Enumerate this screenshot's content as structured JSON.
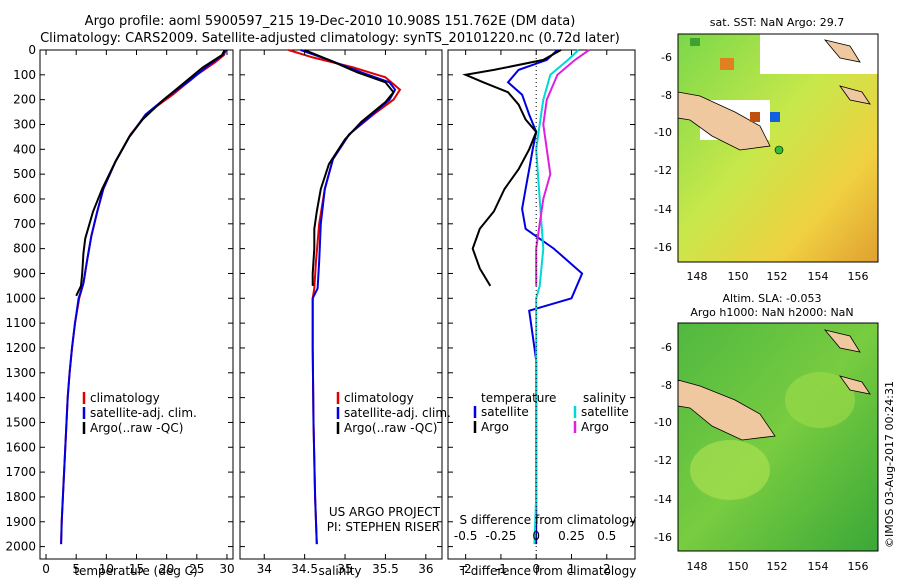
{
  "header": {
    "title_line1": "Argo profile: aoml 5900597_215 19-Dec-2010 10.908S 151.762E (DM data)",
    "title_line2": "Climatology: CARS2009. Satellite-adjusted climatology: synTS_20101220.nc (0.72d later)"
  },
  "colors": {
    "climatology": "#e00000",
    "satellite": "#0000e0",
    "argo": "#000000",
    "sal_satellite": "#00d8d8",
    "sal_argo": "#e020e0",
    "land": "#f0c8a0"
  },
  "chart_data": [
    {
      "type": "line",
      "id": "temperature_profile",
      "xlabel": "temperature (deg C)",
      "ylabel": "depth",
      "xlim": [
        -1,
        31
      ],
      "ylim": [
        2050,
        0
      ],
      "xticks": [
        0,
        5,
        10,
        15,
        20,
        25,
        30
      ],
      "yticks": [
        0,
        100,
        200,
        300,
        400,
        500,
        600,
        700,
        800,
        900,
        1000,
        1100,
        1200,
        1300,
        1400,
        1500,
        1600,
        1700,
        1800,
        1900,
        2000
      ],
      "legend": [
        "climatology",
        "satellite-adj. clim.",
        "Argo(..raw -QC)"
      ],
      "series": [
        {
          "name": "climatology",
          "color": "climatology",
          "points": [
            [
              29.8,
              0
            ],
            [
              29.5,
              20
            ],
            [
              28,
              50
            ],
            [
              25,
              100
            ],
            [
              21,
              180
            ],
            [
              17,
              250
            ],
            [
              14,
              340
            ],
            [
              11.5,
              450
            ],
            [
              9.5,
              560
            ],
            [
              8.5,
              650
            ],
            [
              7.5,
              750
            ],
            [
              6.8,
              850
            ],
            [
              6.2,
              940
            ],
            [
              5.5,
              1000
            ],
            [
              4.8,
              1100
            ],
            [
              4.3,
              1200
            ],
            [
              3.9,
              1300
            ],
            [
              3.6,
              1400
            ],
            [
              3.4,
              1500
            ],
            [
              3.2,
              1600
            ],
            [
              3,
              1700
            ],
            [
              2.8,
              1800
            ],
            [
              2.6,
              1900
            ],
            [
              2.5,
              1990
            ]
          ]
        },
        {
          "name": "satellite-adj. clim.",
          "color": "satellite",
          "points": [
            [
              29.8,
              0
            ],
            [
              29.3,
              20
            ],
            [
              27,
              60
            ],
            [
              24,
              120
            ],
            [
              20,
              190
            ],
            [
              16.5,
              260
            ],
            [
              13.8,
              350
            ],
            [
              11.5,
              450
            ],
            [
              9.5,
              560
            ],
            [
              8.5,
              650
            ],
            [
              7.5,
              750
            ],
            [
              6.8,
              850
            ],
            [
              6.2,
              940
            ],
            [
              5.4,
              1000
            ],
            [
              4.8,
              1100
            ],
            [
              4.3,
              1200
            ],
            [
              3.9,
              1300
            ],
            [
              3.6,
              1400
            ],
            [
              3.4,
              1500
            ],
            [
              3.2,
              1600
            ],
            [
              3,
              1700
            ],
            [
              2.8,
              1800
            ],
            [
              2.6,
              1900
            ],
            [
              2.5,
              1990
            ]
          ]
        },
        {
          "name": "Argo(..raw -QC)",
          "color": "argo",
          "points": [
            [
              29.6,
              0
            ],
            [
              29.2,
              20
            ],
            [
              26,
              70
            ],
            [
              23,
              130
            ],
            [
              19.5,
              200
            ],
            [
              16,
              280
            ],
            [
              13.8,
              350
            ],
            [
              11.5,
              450
            ],
            [
              9.3,
              560
            ],
            [
              7.8,
              650
            ],
            [
              7.2,
              700
            ],
            [
              6.5,
              760
            ],
            [
              6.2,
              820
            ],
            [
              6,
              900
            ],
            [
              5.8,
              950
            ],
            [
              5,
              990
            ]
          ]
        }
      ]
    },
    {
      "type": "line",
      "id": "salinity_profile",
      "xlabel": "salinity",
      "ylabel": "depth",
      "xlim": [
        33.7,
        36.2
      ],
      "ylim": [
        2050,
        0
      ],
      "xticks": [
        34,
        34.5,
        35,
        35.5,
        36
      ],
      "xticklabels": [
        "34",
        "34.5",
        "35",
        "35.5",
        "36"
      ],
      "legend": [
        "climatology",
        "satellite-adj. clim.",
        "Argo(..raw -QC)"
      ],
      "series": [
        {
          "name": "climatology",
          "color": "climatology",
          "points": [
            [
              34.3,
              0
            ],
            [
              34.6,
              30
            ],
            [
              35.1,
              70
            ],
            [
              35.5,
              110
            ],
            [
              35.68,
              160
            ],
            [
              35.6,
              200
            ],
            [
              35.35,
              260
            ],
            [
              35.05,
              340
            ],
            [
              34.85,
              440
            ],
            [
              34.75,
              560
            ],
            [
              34.68,
              700
            ],
            [
              34.64,
              850
            ],
            [
              34.62,
              960
            ],
            [
              34.6,
              1000
            ],
            [
              34.6,
              1200
            ],
            [
              34.61,
              1500
            ],
            [
              34.63,
              1800
            ],
            [
              34.65,
              1990
            ]
          ]
        },
        {
          "name": "satellite-adj. clim.",
          "color": "satellite",
          "points": [
            [
              34.45,
              0
            ],
            [
              34.8,
              40
            ],
            [
              35.2,
              90
            ],
            [
              35.55,
              130
            ],
            [
              35.62,
              160
            ],
            [
              35.55,
              200
            ],
            [
              35.3,
              270
            ],
            [
              35.05,
              340
            ],
            [
              34.85,
              440
            ],
            [
              34.75,
              560
            ],
            [
              34.7,
              700
            ],
            [
              34.68,
              850
            ],
            [
              34.66,
              960
            ],
            [
              34.6,
              1000
            ],
            [
              34.6,
              1200
            ],
            [
              34.61,
              1500
            ],
            [
              34.63,
              1800
            ],
            [
              34.65,
              1990
            ]
          ]
        },
        {
          "name": "Argo(..raw -QC)",
          "color": "argo",
          "points": [
            [
              34.5,
              0
            ],
            [
              34.8,
              40
            ],
            [
              35.15,
              90
            ],
            [
              35.5,
              130
            ],
            [
              35.6,
              170
            ],
            [
              35.5,
              210
            ],
            [
              35.2,
              290
            ],
            [
              35,
              360
            ],
            [
              34.8,
              460
            ],
            [
              34.7,
              560
            ],
            [
              34.65,
              650
            ],
            [
              34.62,
              720
            ],
            [
              34.62,
              800
            ],
            [
              34.6,
              900
            ],
            [
              34.6,
              950
            ]
          ]
        }
      ],
      "annotations": [
        "US ARGO PROJECT",
        "PI: STEPHEN RISER"
      ]
    },
    {
      "type": "line",
      "id": "difference_profile",
      "xlabel": "T difference from climatology",
      "x2label": "S difference from climatology",
      "xlim": [
        -2.5,
        2.8
      ],
      "ylim": [
        2050,
        0
      ],
      "xticks": [
        -2,
        -1,
        0,
        1,
        2
      ],
      "x2ticks": [
        -0.5,
        -0.25,
        0,
        0.25,
        0.5
      ],
      "x2ticklabels": [
        "-0.5",
        "-0.25",
        "0",
        "0.25",
        "0.5"
      ],
      "legend_temperature_title": "temperature",
      "legend_salinity_title": "salinity",
      "legend": [
        "satellite",
        "Argo",
        "satellite",
        "Argo"
      ],
      "series": [
        {
          "name": "T satellite",
          "color": "satellite",
          "points": [
            [
              0.6,
              0
            ],
            [
              0.3,
              40
            ],
            [
              -0.5,
              80
            ],
            [
              -0.8,
              130
            ],
            [
              -0.4,
              180
            ],
            [
              -0.2,
              260
            ],
            [
              0,
              330
            ],
            [
              -0.1,
              400
            ],
            [
              -0.2,
              480
            ],
            [
              -0.3,
              560
            ],
            [
              -0.4,
              640
            ],
            [
              -0.3,
              720
            ],
            [
              0.5,
              800
            ],
            [
              1.3,
              900
            ],
            [
              1,
              1000
            ],
            [
              -0.2,
              1050
            ],
            [
              -0.1,
              1150
            ],
            [
              0,
              1250
            ],
            [
              0,
              1400
            ],
            [
              0,
              1600
            ],
            [
              0,
              1800
            ],
            [
              0,
              1990
            ]
          ]
        },
        {
          "name": "T Argo",
          "color": "argo",
          "points": [
            [
              0.7,
              0
            ],
            [
              0.2,
              40
            ],
            [
              -1.2,
              80
            ],
            [
              -2,
              100
            ],
            [
              -1.5,
              130
            ],
            [
              -0.8,
              170
            ],
            [
              -0.5,
              220
            ],
            [
              -0.3,
              280
            ],
            [
              0,
              330
            ],
            [
              -0.2,
              400
            ],
            [
              -0.5,
              480
            ],
            [
              -0.9,
              560
            ],
            [
              -1.2,
              650
            ],
            [
              -1.6,
              720
            ],
            [
              -1.8,
              800
            ],
            [
              -1.6,
              880
            ],
            [
              -1.3,
              950
            ]
          ]
        },
        {
          "name": "S satellite",
          "color": "sal_satellite",
          "points": [
            [
              1.2,
              0
            ],
            [
              0.9,
              40
            ],
            [
              0.4,
              100
            ],
            [
              0.2,
              200
            ],
            [
              0.1,
              300
            ],
            [
              0,
              400
            ],
            [
              0.1,
              600
            ],
            [
              0.2,
              800
            ],
            [
              0.1,
              950
            ],
            [
              0,
              1000
            ],
            [
              0,
              1200
            ],
            [
              0,
              1500
            ],
            [
              0,
              1800
            ],
            [
              -0.05,
              1990
            ]
          ]
        },
        {
          "name": "S Argo",
          "color": "sal_argo",
          "points": [
            [
              1.5,
              0
            ],
            [
              1.1,
              40
            ],
            [
              0.6,
              100
            ],
            [
              0.3,
              200
            ],
            [
              0.2,
              300
            ],
            [
              0.3,
              400
            ],
            [
              0.4,
              500
            ],
            [
              0.2,
              600
            ],
            [
              0.1,
              700
            ],
            [
              0,
              800
            ],
            [
              0,
              900
            ],
            [
              0,
              950
            ]
          ]
        }
      ]
    }
  ],
  "maps": {
    "sst": {
      "title": "sat. SST: NaN Argo: 29.7",
      "yticks": [
        "-6",
        "-8",
        "-10",
        "-12",
        "-14",
        "-16"
      ],
      "xticks": [
        "148",
        "150",
        "152",
        "154",
        "156"
      ]
    },
    "sla": {
      "title_line1": "Altim. SLA: -0.053",
      "title_line2": "Argo h1000: NaN h2000: NaN",
      "yticks": [
        "-6",
        "-8",
        "-10",
        "-12",
        "-14",
        "-16"
      ],
      "xticks": [
        "148",
        "150",
        "152",
        "154",
        "156"
      ]
    }
  },
  "footer": {
    "credit": "©IMOS 03-Aug-2017 00:24:31"
  }
}
